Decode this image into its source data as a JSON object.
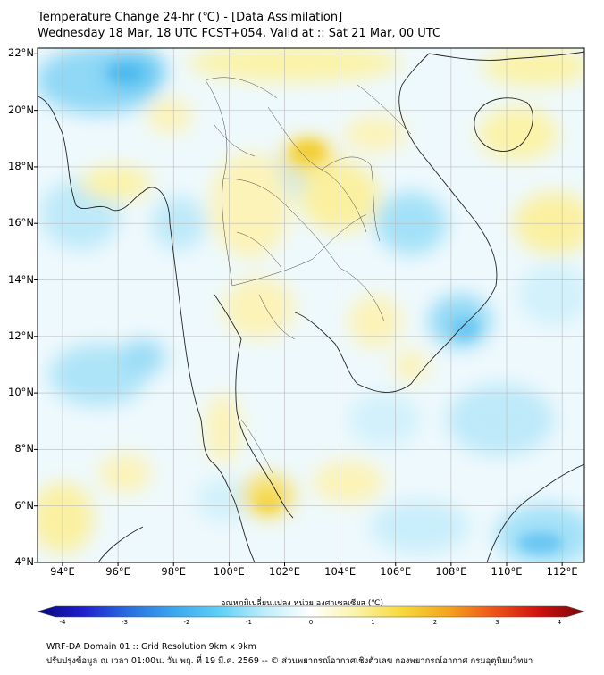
{
  "title": {
    "line1": "Temperature Change 24-hr (℃) - [Data Assimilation]",
    "line2": "Wednesday 18 Mar, 18 UTC FCST+054, Valid at :: Sat 21 Mar, 00 UTC"
  },
  "map": {
    "lat_labels": [
      "22°N",
      "20°N",
      "18°N",
      "16°N",
      "14°N",
      "12°N",
      "10°N",
      "8°N",
      "6°N",
      "4°N"
    ],
    "lon_labels": [
      "94°E",
      "96°E",
      "98°E",
      "100°E",
      "102°E",
      "104°E",
      "106°E",
      "108°E",
      "110°E",
      "112°E"
    ],
    "lat_range": [
      4,
      22.2
    ],
    "lon_range": [
      93.1,
      112.8
    ]
  },
  "colorbar": {
    "title": "อุณหภูมิเปลี่ยนแปลง หน่วย องศาเซลเซียส (℃)",
    "ticks": [
      "-4",
      "-3",
      "-2",
      "-1",
      "0",
      "1",
      "2",
      "3",
      "4"
    ],
    "colors": [
      "#08087a",
      "#1f1fd0",
      "#2a6ee0",
      "#3aa8ee",
      "#5fd0f6",
      "#bfeefb",
      "#ffffff",
      "#fbf3a8",
      "#f6d93a",
      "#f4a51e",
      "#ee5518",
      "#d01010",
      "#7a0606"
    ]
  },
  "footer": {
    "line1": "WRF-DA Domain 01 :: Grid Resolution 9km x 9km",
    "line2": "ปรับปรุงข้อมูล ณ เวลา 01:00น. วัน พฤ. ที่ 19 มี.ค. 2569 -- © ส่วนพยากรณ์อากาศเชิงตัวเลข กองพยากรณ์อากาศ กรมอุตุนิยมวิทยา"
  }
}
